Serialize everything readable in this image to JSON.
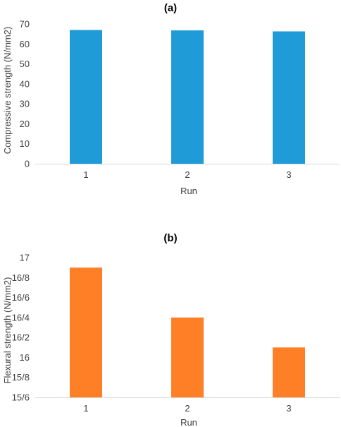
{
  "chart_data": [
    {
      "type": "bar",
      "title": "(a)",
      "xlabel": "Run",
      "ylabel": "Compressive strength (N/mm2)",
      "categories": [
        "1",
        "2",
        "3"
      ],
      "values": [
        67,
        66.8,
        66.3
      ],
      "ylim": [
        0,
        70
      ],
      "yticks": [
        0,
        10,
        20,
        30,
        40,
        50,
        60,
        70
      ],
      "ytick_labels": [
        "0",
        "10",
        "20",
        "30",
        "40",
        "50",
        "60",
        "70"
      ],
      "color": "#1f9bd7",
      "grid": false,
      "legend": "none"
    },
    {
      "type": "bar",
      "title": "(b)",
      "xlabel": "Run",
      "ylabel": "Flexural  strength (N/mm2)",
      "categories": [
        "1",
        "2",
        "3"
      ],
      "values": [
        16.9,
        16.4,
        16.1
      ],
      "ylim": [
        15.6,
        17
      ],
      "yticks": [
        15.6,
        15.8,
        16,
        16.2,
        16.4,
        16.6,
        16.8,
        17
      ],
      "ytick_labels": [
        "15/6",
        "15/8",
        "16",
        "16/2",
        "16/4",
        "16/6",
        "16/8",
        "17"
      ],
      "color": "#ff7f27",
      "grid": false,
      "legend": "none"
    }
  ]
}
